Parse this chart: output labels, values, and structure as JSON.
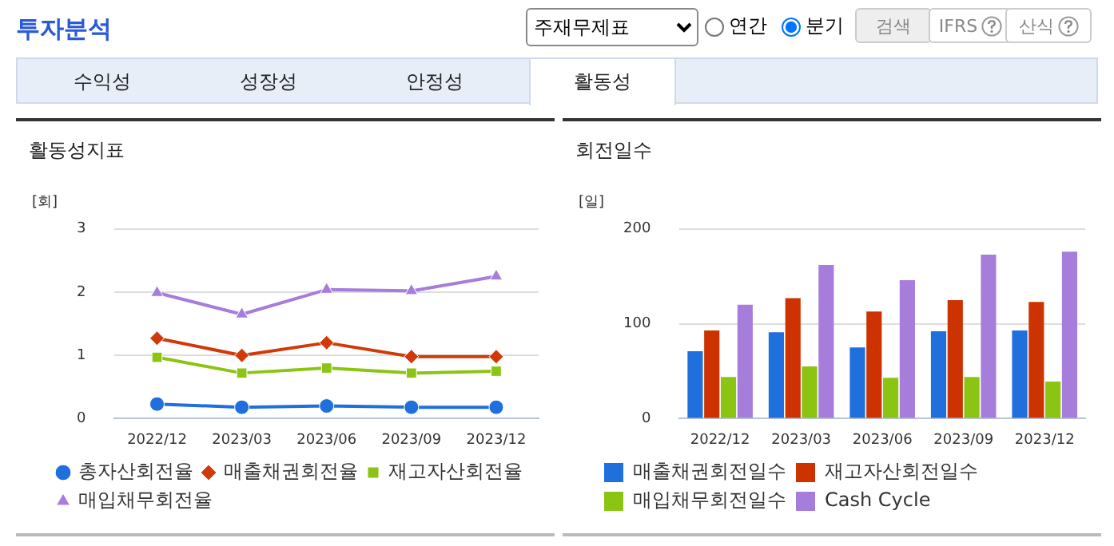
{
  "chart_data": [
    {
      "type": "other",
      "title": "투자분석",
      "annotations": [
        "주재무제표",
        "연간",
        "분기",
        "검색",
        "IFRS",
        "산식",
        "수익성",
        "성장성",
        "안정성",
        "활동성"
      ]
    },
    {
      "type": "line",
      "title": "활동성지표",
      "ylabel": "[회]",
      "categories": [
        "2022/12",
        "2023/03",
        "2023/06",
        "2023/09",
        "2023/12"
      ],
      "ylim": [
        0,
        3
      ],
      "yticks": [
        0,
        1,
        2,
        3
      ],
      "grid": "y",
      "legend": "bottom",
      "line_style": "solid",
      "series": [
        {
          "name": "총자산회전율",
          "color": "#1f6fdc",
          "marker": "circle",
          "values": [
            0.23,
            0.18,
            0.2,
            0.18,
            0.18
          ]
        },
        {
          "name": "매출채권회전율",
          "color": "#d03a0a",
          "marker": "diamond",
          "values": [
            1.27,
            1.0,
            1.2,
            0.98,
            0.98
          ]
        },
        {
          "name": "재고자산회전율",
          "color": "#8cc414",
          "marker": "square",
          "values": [
            0.97,
            0.72,
            0.8,
            0.72,
            0.75
          ]
        },
        {
          "name": "매입채무회전율",
          "color": "#a77ddc",
          "marker": "triangle",
          "values": [
            1.99,
            1.65,
            2.04,
            2.02,
            2.25
          ]
        }
      ]
    },
    {
      "type": "bar",
      "title": "회전일수",
      "ylabel": "[일]",
      "categories": [
        "2022/12",
        "2023/03",
        "2023/06",
        "2023/09",
        "2023/12"
      ],
      "ylim": [
        0,
        200
      ],
      "yticks": [
        0,
        100,
        200
      ],
      "grid": "y",
      "legend": "bottom",
      "series": [
        {
          "name": "매출채권회전일수",
          "color": "#1f6fdc",
          "values": [
            71,
            91,
            75,
            92,
            93
          ]
        },
        {
          "name": "재고자산회전일수",
          "color": "#cc3300",
          "values": [
            93,
            127,
            113,
            125,
            123
          ]
        },
        {
          "name": "매입채무회전일수",
          "color": "#8cc414",
          "values": [
            44,
            55,
            43,
            44,
            39
          ]
        },
        {
          "name": "Cash Cycle",
          "color": "#a77ddc",
          "values": [
            120,
            162,
            146,
            173,
            176
          ]
        }
      ]
    }
  ]
}
